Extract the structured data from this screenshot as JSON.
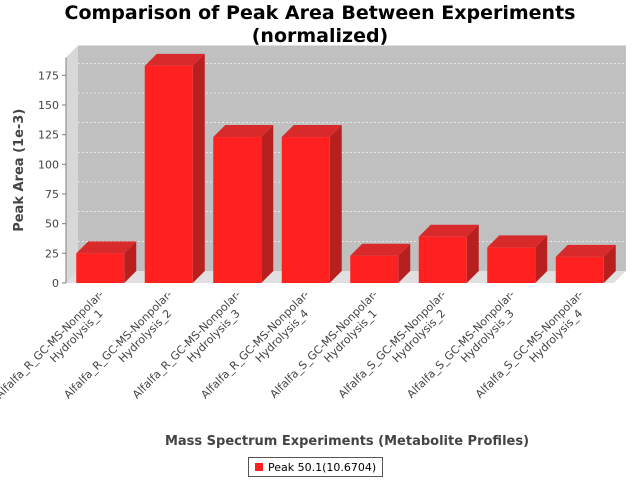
{
  "chart_data": {
    "type": "bar",
    "title": "Comparison of Peak Area Between Experiments",
    "title_line2": "(normalized)",
    "xlabel": "Mass Spectrum Experiments (Metabolite Profiles)",
    "ylabel": "Peak Area (1e-3)",
    "ylim": [
      0,
      190
    ],
    "yticks": [
      0,
      25,
      50,
      75,
      100,
      125,
      150,
      175
    ],
    "grid": true,
    "legend_position": "bottom",
    "colors": {
      "bar": "#ff2020",
      "bar_side": "#b82020",
      "bar_top": "#d82a2a",
      "plot_bg": "#c0c0c0",
      "plot_side": "#d8d8d8",
      "plot_floor": "#e0e0e0"
    },
    "categories": [
      [
        "Alfalfa_R_GC-MS-Nonpolar-",
        "Hydrolysis_1"
      ],
      [
        "Alfalfa_R_GC-MS-Nonpolar-",
        "Hydrolysis_2"
      ],
      [
        "Alfalfa_R_GC-MS-Nonpolar-",
        "Hydrolysis_3"
      ],
      [
        "Alfalfa_R_GC-MS-Nonpolar-",
        "Hydrolysis_4"
      ],
      [
        "Alfalfa_S_GC-MS-Nonpolar-",
        "Hydrolysis_1"
      ],
      [
        "Alfalfa_S_GC-MS-Nonpolar-",
        "Hydrolysis_2"
      ],
      [
        "Alfalfa_S_GC-MS-Nonpolar-",
        "Hydrolysis_3"
      ],
      [
        "Alfalfa_S_GC-MS-Nonpolar-",
        "Hydrolysis_4"
      ]
    ],
    "series": [
      {
        "name": "Peak 50.1(10.6704)",
        "values": [
          25,
          183,
          123,
          123,
          23,
          39,
          30,
          22
        ]
      }
    ]
  }
}
